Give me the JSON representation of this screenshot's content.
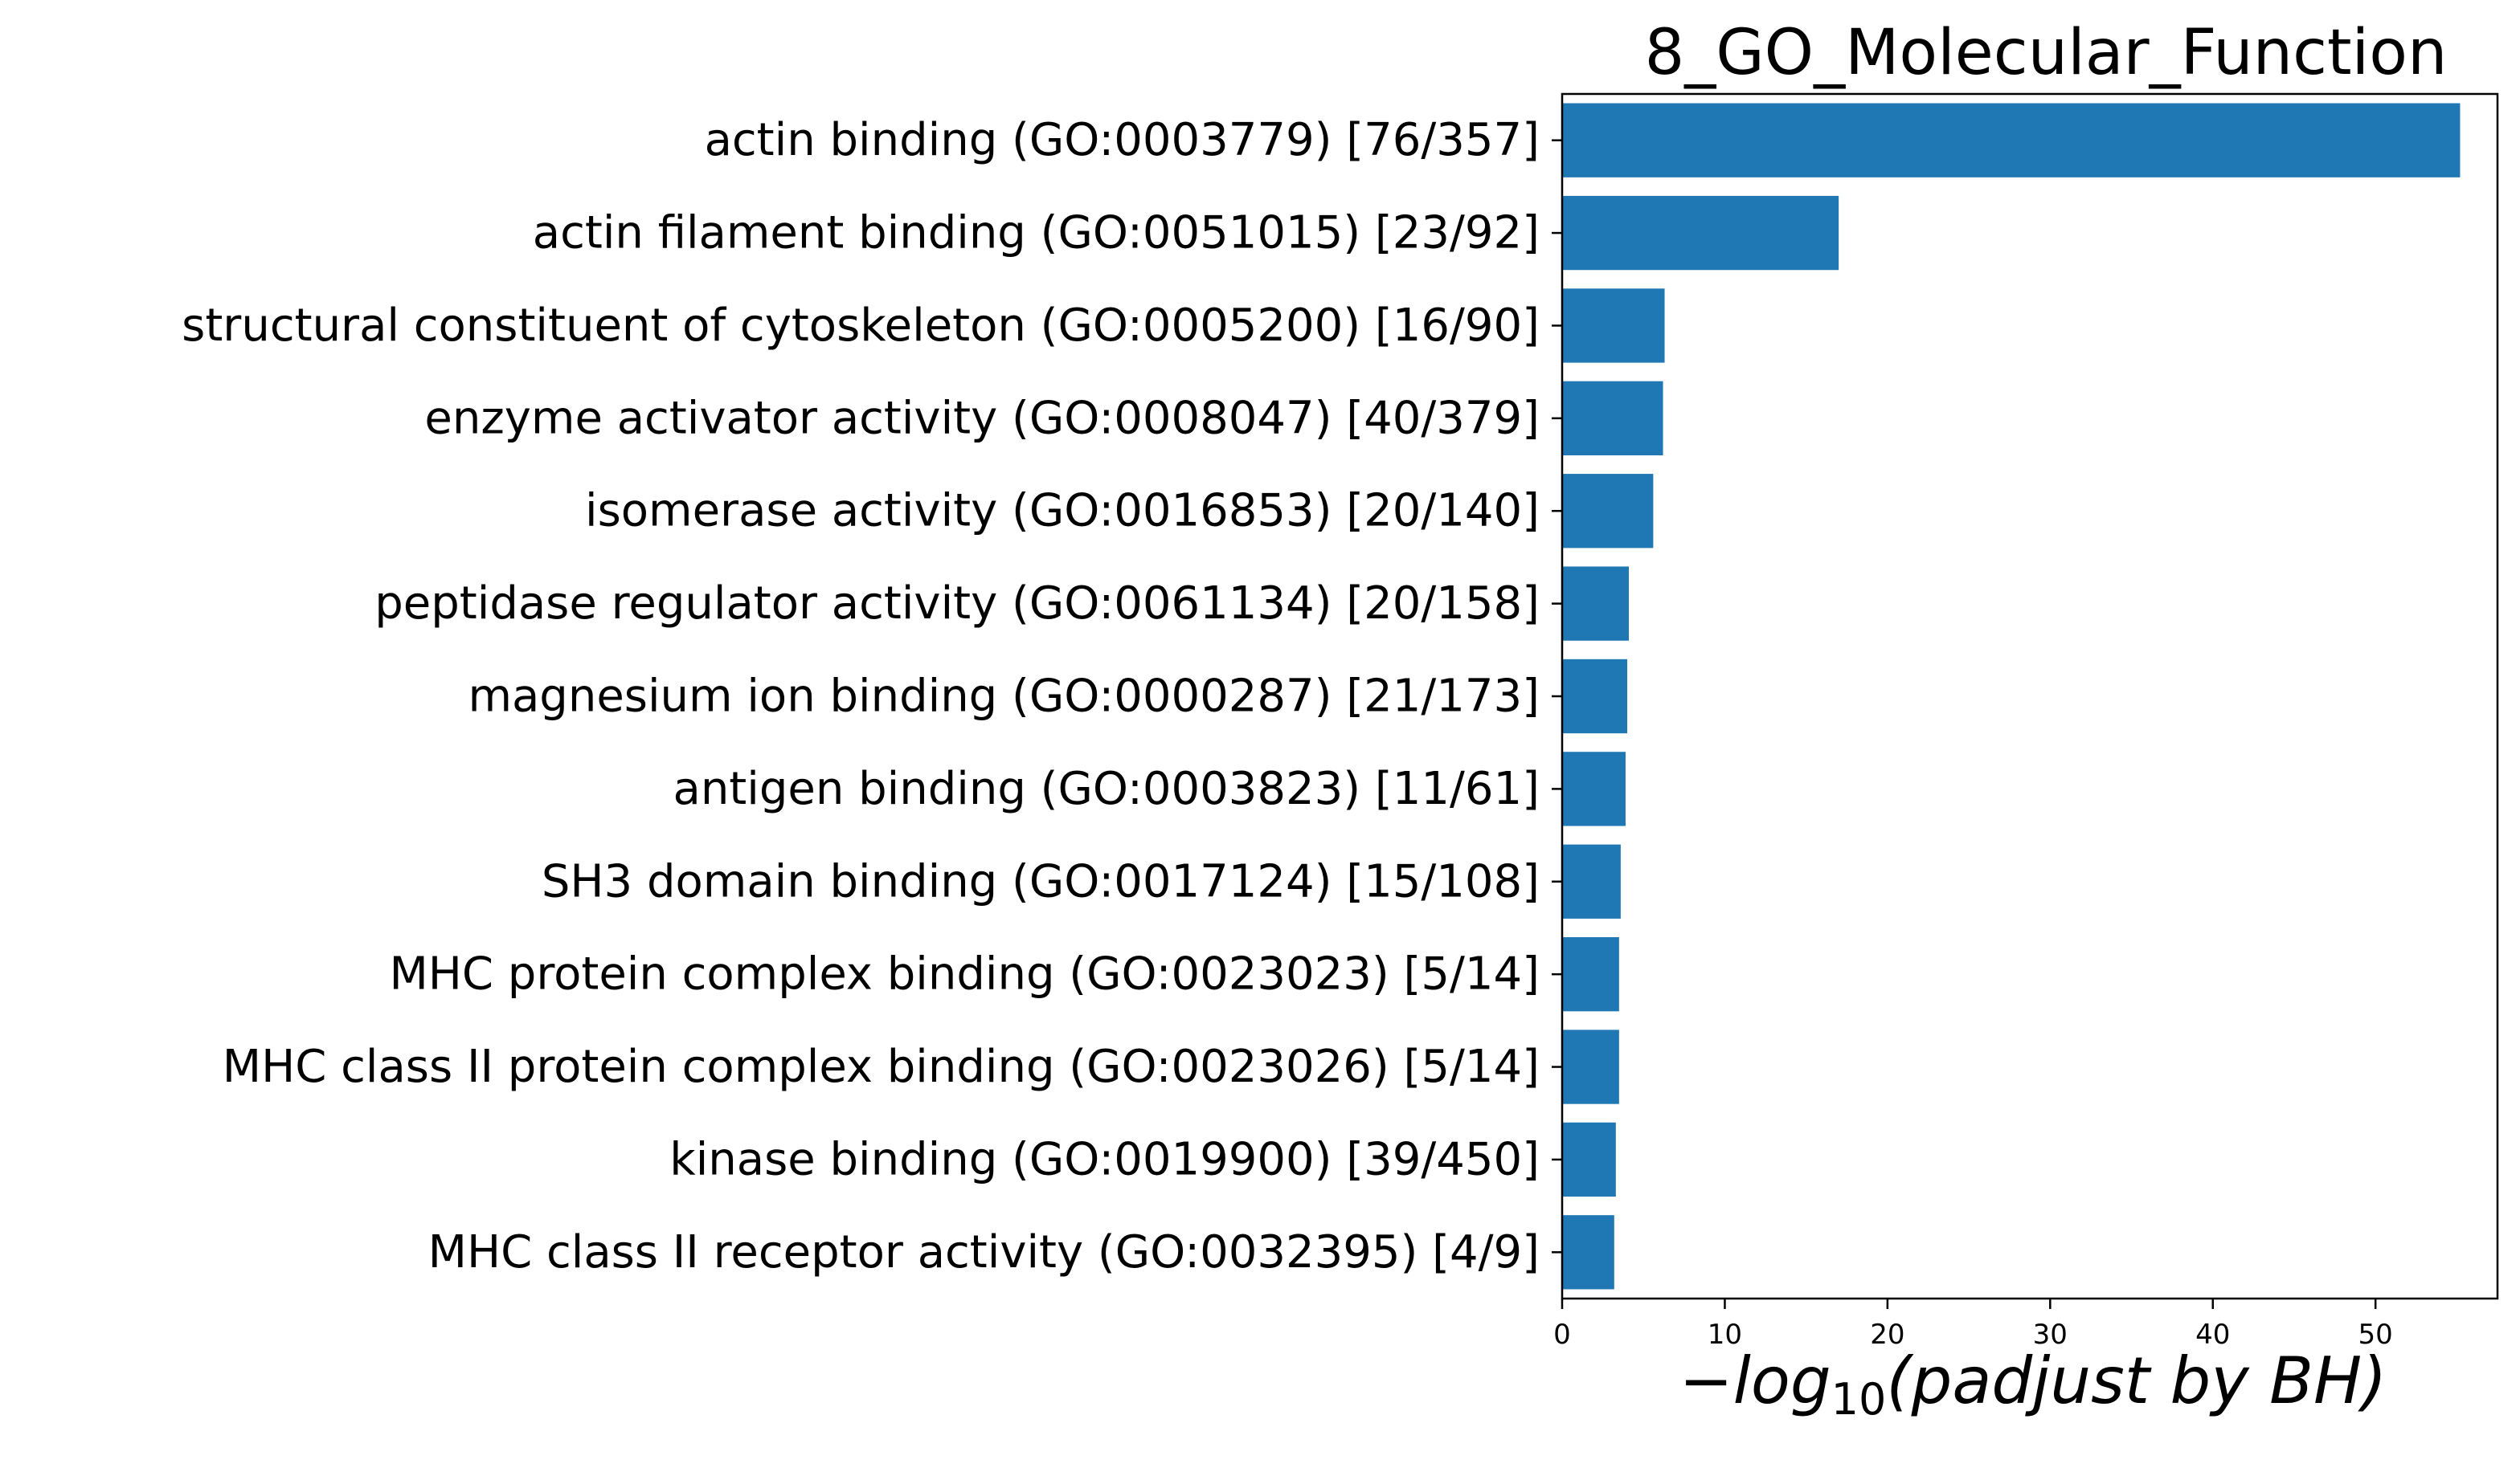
{
  "chart_data": {
    "type": "bar",
    "orientation": "horizontal",
    "title": "8_GO_Molecular_Function",
    "xlabel": {
      "prefix": "−log",
      "subscript": "10",
      "suffix": "(padjust by BH)"
    },
    "ylabel": "",
    "xlim": [
      0,
      57.5
    ],
    "xticks": [
      0,
      10,
      20,
      30,
      40,
      50
    ],
    "grid": false,
    "bar_color": "#1f77b4",
    "categories": [
      "actin binding (GO:0003779) [76/357]",
      "actin filament binding (GO:0051015) [23/92]",
      "structural constituent of cytoskeleton (GO:0005200) [16/90]",
      "enzyme activator activity (GO:0008047) [40/379]",
      "isomerase activity (GO:0016853) [20/140]",
      "peptidase regulator activity (GO:0061134) [20/158]",
      "magnesium ion binding (GO:0000287) [21/173]",
      "antigen binding (GO:0003823) [11/61]",
      "SH3 domain binding (GO:0017124) [15/108]",
      "MHC protein complex binding (GO:0023023) [5/14]",
      "MHC class II protein complex binding (GO:0023026) [5/14]",
      "kinase binding (GO:0019900) [39/450]",
      "MHC class II receptor activity (GO:0032395) [4/9]"
    ],
    "values": [
      55.2,
      17.0,
      6.3,
      6.2,
      5.6,
      4.1,
      4.0,
      3.9,
      3.6,
      3.5,
      3.5,
      3.3,
      3.2
    ]
  }
}
